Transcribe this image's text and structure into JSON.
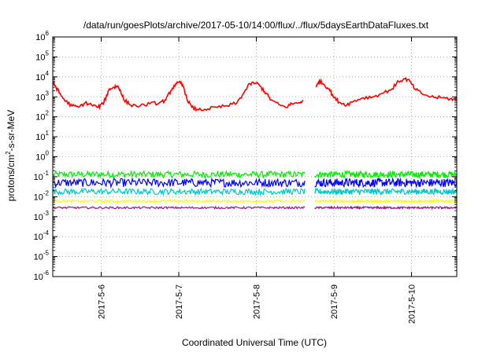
{
  "chart_data": {
    "type": "line",
    "title": "/data/run/goesPlots/archive/2017-05-10/14:00/flux/../flux/5daysEarthDataFluxes.txt",
    "xlabel": "Coordinated Universal Time (UTC)",
    "ylabel": "protons/cm²-s-sr-MeV",
    "ylabel_parts": {
      "pre": "protons/cm",
      "sup": "2",
      "post": "-s-sr-MeV"
    },
    "y_scale": "log",
    "ylim": [
      1e-06,
      1000000.0
    ],
    "y_ticks": [
      {
        "value": 1e-06,
        "base": "10",
        "exp": "-6"
      },
      {
        "value": 1e-05,
        "base": "10",
        "exp": "-5"
      },
      {
        "value": 0.0001,
        "base": "10",
        "exp": "-4"
      },
      {
        "value": 0.001,
        "base": "10",
        "exp": "-3"
      },
      {
        "value": 0.01,
        "base": "10",
        "exp": "-2"
      },
      {
        "value": 0.1,
        "base": "10",
        "exp": "-1"
      },
      {
        "value": 1,
        "base": "10",
        "exp": "0"
      },
      {
        "value": 10,
        "base": "10",
        "exp": "1"
      },
      {
        "value": 100,
        "base": "10",
        "exp": "2"
      },
      {
        "value": 1000.0,
        "base": "10",
        "exp": "3"
      },
      {
        "value": 10000.0,
        "base": "10",
        "exp": "4"
      },
      {
        "value": 100000.0,
        "base": "10",
        "exp": "5"
      },
      {
        "value": 1000000.0,
        "base": "10",
        "exp": "6"
      }
    ],
    "xlim": [
      "2017-05-05T09:00",
      "2017-05-10T14:00"
    ],
    "x_ticks": [
      {
        "value": "2017-05-06T00:00",
        "label": "2017-5-6"
      },
      {
        "value": "2017-05-07T00:00",
        "label": "2017-5-7"
      },
      {
        "value": "2017-05-08T00:00",
        "label": "2017-5-8"
      },
      {
        "value": "2017-05-09T00:00",
        "label": "2017-5-9"
      },
      {
        "value": "2017-05-10T00:00",
        "label": "2017-5-10"
      }
    ],
    "grid": true,
    "data_gap": [
      "2017-05-08T15:00",
      "2017-05-08T18:00"
    ],
    "series": [
      {
        "color": "#ff0000",
        "points": [
          [
            "2017-05-05T09:00",
            6000
          ],
          [
            "2017-05-05T10:00",
            3000
          ],
          [
            "2017-05-05T11:30",
            1200
          ],
          [
            "2017-05-05T13:00",
            600
          ],
          [
            "2017-05-05T15:00",
            350
          ],
          [
            "2017-05-05T17:00",
            300
          ],
          [
            "2017-05-05T19:00",
            500
          ],
          [
            "2017-05-05T21:00",
            400
          ],
          [
            "2017-05-05T23:00",
            300
          ],
          [
            "2017-05-06T00:30",
            450
          ],
          [
            "2017-05-06T01:30",
            1000
          ],
          [
            "2017-05-06T02:30",
            2500
          ],
          [
            "2017-05-06T04:00",
            3000
          ],
          [
            "2017-05-06T05:00",
            3500
          ],
          [
            "2017-05-06T06:00",
            2000
          ],
          [
            "2017-05-06T07:00",
            700
          ],
          [
            "2017-05-06T09:00",
            400
          ],
          [
            "2017-05-06T12:00",
            350
          ],
          [
            "2017-05-06T15:00",
            450
          ],
          [
            "2017-05-06T18:00",
            500
          ],
          [
            "2017-05-06T20:00",
            700
          ],
          [
            "2017-05-06T21:30",
            2000
          ],
          [
            "2017-05-06T23:00",
            4500
          ],
          [
            "2017-05-07T00:30",
            5000
          ],
          [
            "2017-05-07T01:30",
            3000
          ],
          [
            "2017-05-07T02:30",
            800
          ],
          [
            "2017-05-07T04:00",
            300
          ],
          [
            "2017-05-07T06:00",
            220
          ],
          [
            "2017-05-07T09:00",
            250
          ],
          [
            "2017-05-07T12:00",
            300
          ],
          [
            "2017-05-07T15:00",
            350
          ],
          [
            "2017-05-07T18:00",
            500
          ],
          [
            "2017-05-07T20:00",
            1500
          ],
          [
            "2017-05-07T22:00",
            4500
          ],
          [
            "2017-05-08T00:00",
            5000
          ],
          [
            "2017-05-08T01:30",
            3000
          ],
          [
            "2017-05-08T03:00",
            1500
          ],
          [
            "2017-05-08T04:30",
            700
          ],
          [
            "2017-05-08T07:00",
            400
          ],
          [
            "2017-05-08T09:00",
            300
          ],
          [
            "2017-05-08T11:00",
            450
          ],
          [
            "2017-05-08T13:00",
            500
          ],
          [
            "2017-05-08T14:30",
            650
          ],
          [
            "2017-05-08T18:30",
            3000
          ],
          [
            "2017-05-08T19:30",
            6500
          ],
          [
            "2017-05-08T21:00",
            4000
          ],
          [
            "2017-05-08T22:30",
            2500
          ],
          [
            "2017-05-09T00:00",
            900
          ],
          [
            "2017-05-09T02:00",
            500
          ],
          [
            "2017-05-09T04:00",
            400
          ],
          [
            "2017-05-09T06:00",
            600
          ],
          [
            "2017-05-09T09:00",
            900
          ],
          [
            "2017-05-09T12:00",
            1000
          ],
          [
            "2017-05-09T15:00",
            1500
          ],
          [
            "2017-05-09T18:00",
            2500
          ],
          [
            "2017-05-09T20:00",
            6000
          ],
          [
            "2017-05-09T22:00",
            8000
          ],
          [
            "2017-05-09T23:30",
            6000
          ],
          [
            "2017-05-10T01:00",
            2500
          ],
          [
            "2017-05-10T03:00",
            1500
          ],
          [
            "2017-05-10T06:00",
            1000
          ],
          [
            "2017-05-10T09:00",
            900
          ],
          [
            "2017-05-10T12:00",
            800
          ],
          [
            "2017-05-10T14:00",
            700
          ]
        ]
      },
      {
        "color": "#00ee00",
        "level": 0.13
      },
      {
        "color": "#0000ff",
        "level": 0.05
      },
      {
        "color": "#00c8c8",
        "level": 0.018
      },
      {
        "color": "#ffff00",
        "level": 0.006
      },
      {
        "color": "#8b1a8b",
        "level": 0.0028
      }
    ]
  }
}
